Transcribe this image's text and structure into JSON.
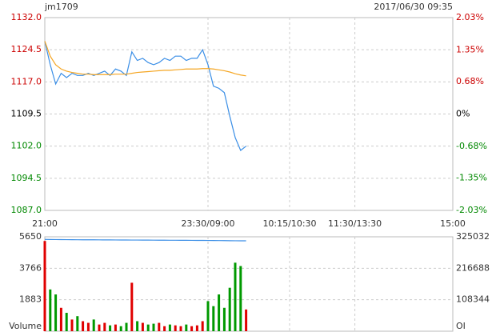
{
  "chart_data": [
    {
      "type": "line",
      "title": "jm1709",
      "subtitle": "2017/06/30 09:35",
      "x": [
        0,
        5,
        10,
        15,
        20,
        25,
        30,
        35,
        40,
        45,
        50,
        55,
        60,
        65,
        70,
        75,
        80,
        85,
        90,
        95,
        100,
        105,
        110,
        115,
        120,
        125,
        130,
        135,
        140,
        145,
        150,
        155,
        160,
        165,
        170,
        175,
        180,
        185
      ],
      "series": [
        {
          "color": "#3a8ee6",
          "values": [
            1126.5,
            1121,
            1116.5,
            1119,
            1118,
            1119,
            1118.5,
            1118.5,
            1119,
            1118.5,
            1119,
            1119.5,
            1118.5,
            1120,
            1119.5,
            1118.5,
            1124,
            1122,
            1122.5,
            1121.5,
            1121,
            1121.5,
            1122.5,
            1122,
            1123,
            1123,
            1122,
            1122.5,
            1122.5,
            1124.5,
            1121,
            1116,
            1115.5,
            1114.5,
            1109,
            1104,
            1101,
            1102
          ]
        },
        {
          "color": "#f5a623",
          "values": [
            1126.5,
            1123,
            1121,
            1120,
            1119.5,
            1119.2,
            1119,
            1118.8,
            1118.8,
            1118.7,
            1118.7,
            1118.7,
            1118.7,
            1118.8,
            1118.8,
            1118.8,
            1119,
            1119.2,
            1119.3,
            1119.4,
            1119.5,
            1119.6,
            1119.7,
            1119.7,
            1119.8,
            1119.9,
            1120,
            1120,
            1120,
            1120.1,
            1120.1,
            1120,
            1119.8,
            1119.6,
            1119.3,
            1118.9,
            1118.6,
            1118.4
          ]
        }
      ],
      "xlim": [
        0,
        375
      ],
      "xticks": [
        {
          "value": 0,
          "label": "21:00"
        },
        {
          "value": 150,
          "label": "23:30/09:00"
        },
        {
          "value": 225,
          "label": "10:15/10:30"
        },
        {
          "value": 285,
          "label": "11:30/13:30"
        },
        {
          "value": 375,
          "label": "15:00"
        }
      ],
      "ylim": [
        1087,
        1132
      ],
      "yticks": [
        {
          "value": 1132,
          "label": "1132.0"
        },
        {
          "value": 1124.5,
          "label": "1124.5"
        },
        {
          "value": 1117,
          "label": "1117.0"
        },
        {
          "value": 1109.5,
          "label": "1109.5"
        },
        {
          "value": 1102,
          "label": "1102.0"
        },
        {
          "value": 1094.5,
          "label": "1094.5"
        },
        {
          "value": 1087,
          "label": "1087.0"
        }
      ],
      "y2lim": [
        -2.03,
        2.03
      ],
      "y2ticks": [
        {
          "value": 2.03,
          "label": "2.03%"
        },
        {
          "value": 1.35,
          "label": "1.35%"
        },
        {
          "value": 0.68,
          "label": "0.68%"
        },
        {
          "value": 0,
          "label": "0%"
        },
        {
          "value": -0.68,
          "label": "-0.68%"
        },
        {
          "value": -1.35,
          "label": "-1.35%"
        },
        {
          "value": -2.03,
          "label": "-2.03%"
        }
      ],
      "up_color": "#cc0000",
      "down_color": "#008800",
      "flat_color": "#000000",
      "grid": true
    },
    {
      "type": "bar",
      "x": [
        0,
        5,
        10,
        15,
        20,
        25,
        30,
        35,
        40,
        45,
        50,
        55,
        60,
        65,
        70,
        75,
        80,
        85,
        90,
        95,
        100,
        105,
        110,
        115,
        120,
        125,
        130,
        135,
        140,
        145,
        150,
        155,
        160,
        165,
        170,
        175,
        180,
        185
      ],
      "series": [
        {
          "up_color": "#e00000",
          "down_color": "#009900",
          "values": [
            5400,
            2500,
            2200,
            1400,
            1100,
            700,
            900,
            600,
            500,
            700,
            400,
            500,
            350,
            400,
            300,
            500,
            2900,
            600,
            500,
            400,
            450,
            500,
            300,
            400,
            350,
            300,
            400,
            300,
            350,
            600,
            1800,
            1500,
            2200,
            1400,
            2600,
            4100,
            3900,
            1300
          ]
        },
        {
          "type": "line",
          "axis": "y2",
          "color": "#3a8ee6",
          "values": [
            316000,
            315800,
            315600,
            315400,
            315200,
            315000,
            314900,
            314800,
            314700,
            314600,
            314500,
            314400,
            314300,
            314200,
            314100,
            314000,
            313900,
            313800,
            313700,
            313600,
            313500,
            313400,
            313300,
            313200,
            313100,
            313000,
            312900,
            312800,
            312700,
            312600,
            312500,
            312300,
            312100,
            311900,
            311700,
            311500,
            311300,
            311200
          ]
        }
      ],
      "xlim": [
        0,
        375
      ],
      "ylim": [
        0,
        5650
      ],
      "yticks": [
        5650,
        3766,
        1883,
        {
          "value": 0,
          "label": "Volume"
        }
      ],
      "y2lim": [
        0,
        325032
      ],
      "y2ticks": [
        325032,
        216688,
        108344,
        {
          "value": 0,
          "label": "OI"
        }
      ]
    }
  ]
}
